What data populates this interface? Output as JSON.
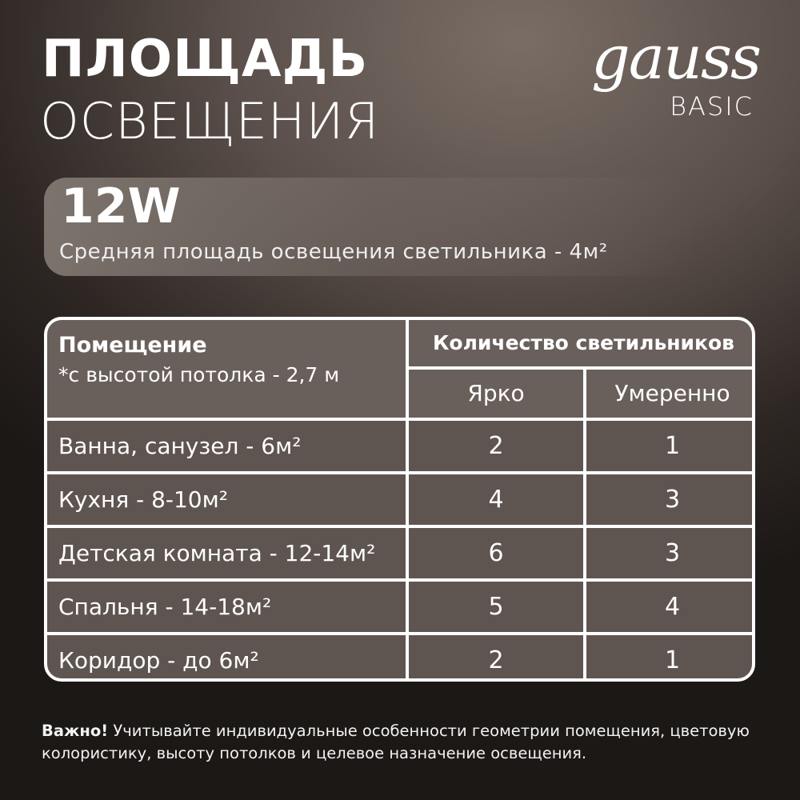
{
  "title": {
    "line1": "ПЛОЩАДЬ",
    "line2": "ОСВЕЩЕНИЯ"
  },
  "logo": {
    "brand": "gauss",
    "line": "BASIC"
  },
  "banner": {
    "power": "12W",
    "description": "Средняя площадь освещения светильника - 4м²"
  },
  "table": {
    "room_header": "Помещение",
    "room_note": "*с высотой потолка - 2,7 м",
    "count_header": "Количество светильников",
    "col_bright": "Ярко",
    "col_moderate": "Умеренно",
    "rows": [
      {
        "room": "Ванна, санузел - 6м²",
        "bright": "2",
        "moderate": "1"
      },
      {
        "room": "Кухня - 8-10м²",
        "bright": "4",
        "moderate": "3"
      },
      {
        "room": "Детская комната - 12-14м²",
        "bright": "6",
        "moderate": "3"
      },
      {
        "room": "Спальня - 14-18м²",
        "bright": "5",
        "moderate": "4"
      },
      {
        "room": "Коридор - до 6м²",
        "bright": "2",
        "moderate": "1"
      }
    ]
  },
  "note": {
    "bold": "Важно!",
    "text": " Учитывайте индивидуальные особенности геометрии помещения, цветовую колористику, высоту потолков и целевое назначение освещения."
  }
}
